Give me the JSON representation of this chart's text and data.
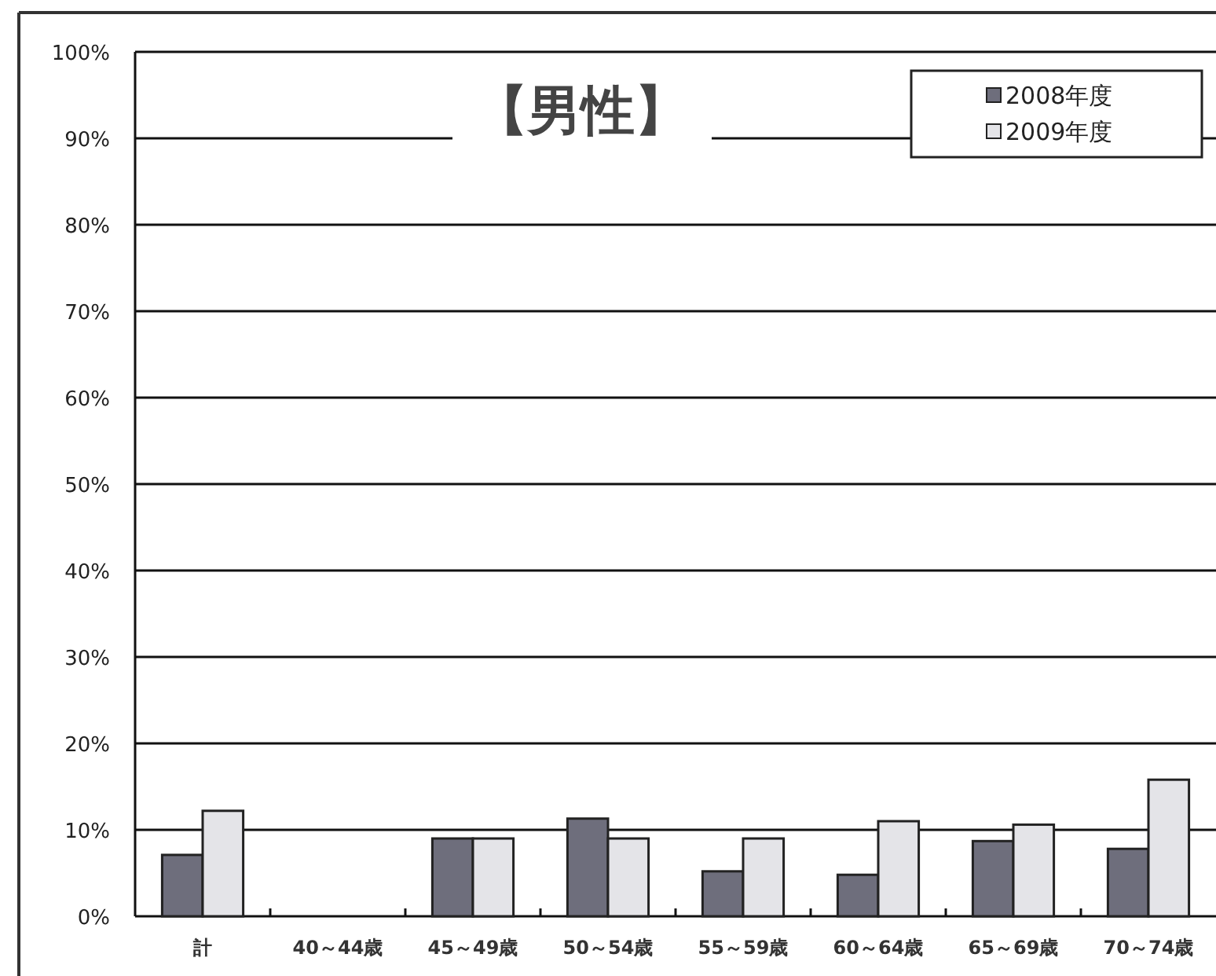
{
  "chart_data": {
    "type": "bar",
    "title": "【男性】",
    "categories": [
      "計",
      "40～44歳",
      "45～49歳",
      "50～54歳",
      "55～59歳",
      "60～64歳",
      "65～69歳",
      "70～74歳"
    ],
    "series": [
      {
        "name": "2008年度",
        "color": "#6e6e7c",
        "values": [
          7.1,
          null,
          9.0,
          11.3,
          5.2,
          4.8,
          8.7,
          7.8
        ]
      },
      {
        "name": "2009年度",
        "color": "#e4e4e8",
        "values": [
          12.2,
          null,
          9.0,
          9.0,
          9.0,
          11.0,
          10.6,
          15.8
        ]
      }
    ],
    "ylim": [
      0,
      100
    ],
    "yticks": [
      {
        "value": 0,
        "label": "0%"
      },
      {
        "value": 10,
        "label": "10%"
      },
      {
        "value": 20,
        "label": "20%"
      },
      {
        "value": 30,
        "label": "30%"
      },
      {
        "value": 40,
        "label": "40%"
      },
      {
        "value": 50,
        "label": "50%"
      },
      {
        "value": 60,
        "label": "60%"
      },
      {
        "value": 70,
        "label": "70%"
      },
      {
        "value": 80,
        "label": "80%"
      },
      {
        "value": 90,
        "label": "90%"
      },
      {
        "value": 100,
        "label": "100%"
      }
    ],
    "grid": "y",
    "legend": "top right"
  }
}
